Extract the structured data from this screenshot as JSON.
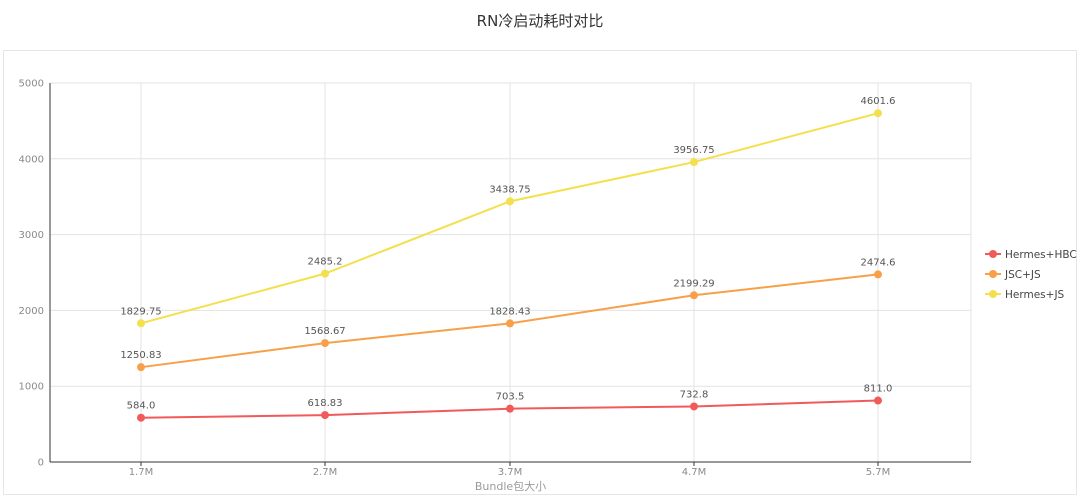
{
  "chart_data": {
    "type": "line",
    "title": "RN冷启动耗时对比",
    "xlabel": "Bundle包大小",
    "ylabel": "",
    "categories": [
      "1.7M",
      "2.7M",
      "3.7M",
      "4.7M",
      "5.7M"
    ],
    "ylim": [
      0,
      5000
    ],
    "yticks": [
      0,
      1000,
      2000,
      3000,
      4000,
      5000
    ],
    "grid": true,
    "legend": "right",
    "series": [
      {
        "name": "Hermes+HBC",
        "color": "#f15a5a",
        "values": [
          584.0,
          618.83,
          703.5,
          732.8,
          811.0
        ],
        "labels": [
          "584.0",
          "618.83",
          "703.5",
          "732.8",
          "811.0"
        ]
      },
      {
        "name": "JSC+JS",
        "color": "#f7a049",
        "values": [
          1250.83,
          1568.67,
          1828.43,
          2199.29,
          2474.6
        ],
        "labels": [
          "1250.83",
          "1568.67",
          "1828.43",
          "2199.29",
          "2474.6"
        ]
      },
      {
        "name": "Hermes+JS",
        "color": "#f4e04d",
        "values": [
          1829.75,
          2485.2,
          3438.75,
          3956.75,
          4601.6
        ],
        "labels": [
          "1829.75",
          "2485.2",
          "3438.75",
          "3956.75",
          "4601.6"
        ]
      }
    ]
  }
}
